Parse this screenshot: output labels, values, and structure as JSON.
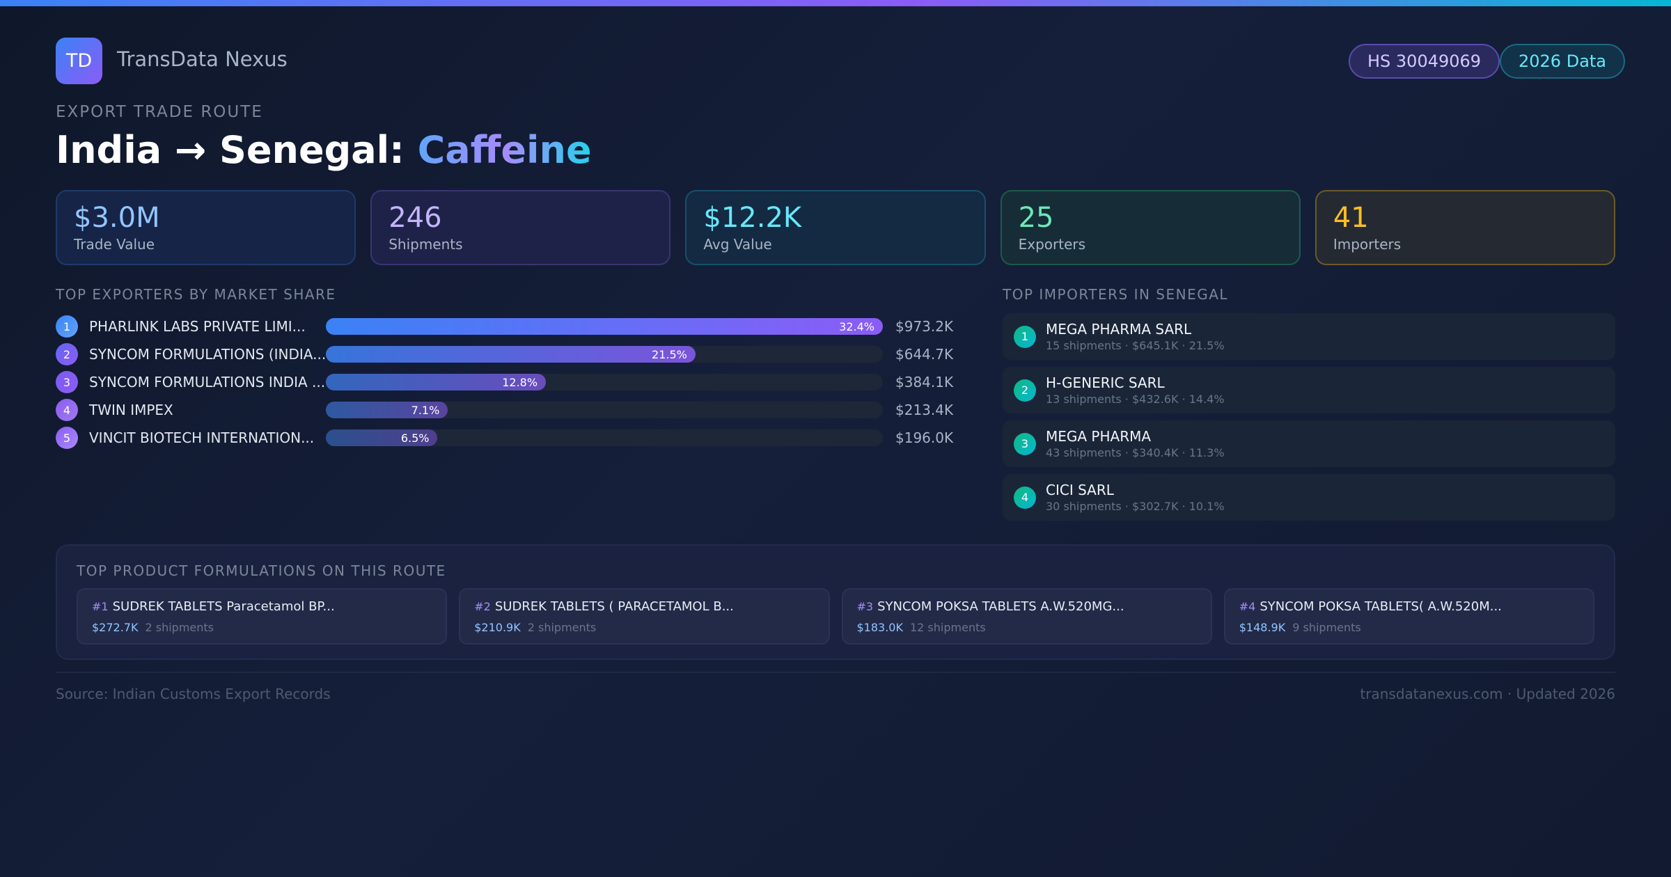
{
  "brand": {
    "logo": "TD",
    "name": "TransData Nexus"
  },
  "badges": {
    "hs": "HS 30049069",
    "year": "2026 Data"
  },
  "header": {
    "kicker": "EXPORT TRADE ROUTE",
    "route": "India → Senegal:",
    "product": "Caffeine"
  },
  "stats": [
    {
      "value": "$3.0M",
      "label": "Trade Value",
      "color": "#93c5fd"
    },
    {
      "value": "246",
      "label": "Shipments",
      "color": "#c4b5fd"
    },
    {
      "value": "$12.2K",
      "label": "Avg Value",
      "color": "#67e8f9"
    },
    {
      "value": "25",
      "label": "Exporters",
      "color": "#6ee7b7"
    },
    {
      "value": "41",
      "label": "Importers",
      "color": "#fbbf24"
    }
  ],
  "exporters": {
    "title": "TOP EXPORTERS BY MARKET SHARE",
    "items": [
      {
        "rank": "1",
        "name": "PHARLINK LABS PRIVATE LIMI...",
        "share": 32.4,
        "share_label": "32.4%",
        "value": "$973.2K"
      },
      {
        "rank": "2",
        "name": "SYNCOM FORMULATIONS (INDIA...",
        "share": 21.5,
        "share_label": "21.5%",
        "value": "$644.7K"
      },
      {
        "rank": "3",
        "name": "SYNCOM FORMULATIONS INDIA ...",
        "share": 12.8,
        "share_label": "12.8%",
        "value": "$384.1K"
      },
      {
        "rank": "4",
        "name": "TWIN IMPEX",
        "share": 7.1,
        "share_label": "7.1%",
        "value": "$213.4K"
      },
      {
        "rank": "5",
        "name": "VINCIT BIOTECH INTERNATION...",
        "share": 6.5,
        "share_label": "6.5%",
        "value": "$196.0K"
      }
    ]
  },
  "importers": {
    "title": "TOP IMPORTERS IN SENEGAL",
    "items": [
      {
        "rank": "1",
        "name": "MEGA PHARMA SARL",
        "details": "15 shipments · $645.1K · 21.5%"
      },
      {
        "rank": "2",
        "name": "H-GENERIC SARL",
        "details": "13 shipments · $432.6K · 14.4%"
      },
      {
        "rank": "3",
        "name": "MEGA PHARMA",
        "details": "43 shipments · $340.4K · 11.3%"
      },
      {
        "rank": "4",
        "name": "CICI SARL",
        "details": "30 shipments · $302.7K · 10.1%"
      }
    ]
  },
  "products": {
    "title": "TOP PRODUCT FORMULATIONS ON THIS ROUTE",
    "items": [
      {
        "rank": "#1",
        "name": "SUDREK TABLETS Paracetamol BP...",
        "value": "$272.7K",
        "shipments": "2 shipments"
      },
      {
        "rank": "#2",
        "name": "SUDREK TABLETS ( PARACETAMOL  B...",
        "value": "$210.9K",
        "shipments": "2 shipments"
      },
      {
        "rank": "#3",
        "name": "SYNCOM POKSA TABLETS A.W.520MG...",
        "value": "$183.0K",
        "shipments": "12 shipments"
      },
      {
        "rank": "#4",
        "name": "SYNCOM POKSA TABLETS( A.W.520M...",
        "value": "$148.9K",
        "shipments": "9 shipments"
      }
    ]
  },
  "footer": {
    "source": "Source: Indian Customs Export Records",
    "site": "transdatanexus.com · Updated 2026"
  }
}
